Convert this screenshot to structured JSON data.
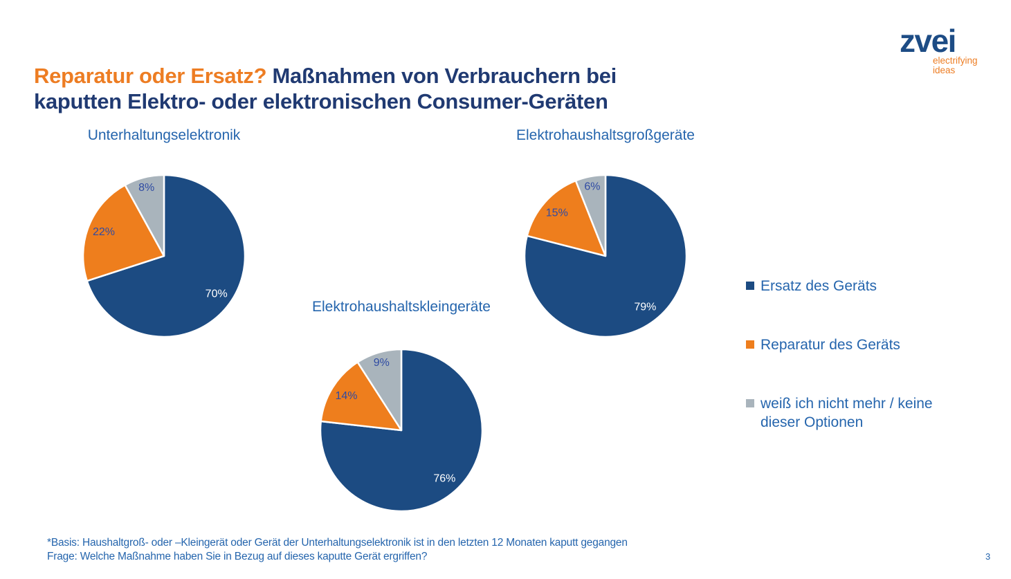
{
  "header": {
    "title_line1_highlight": "Reparatur oder Ersatz?",
    "title_line1_rest": " Maßnahmen von Verbrauchern bei",
    "title_line2": "kaputten Elektro- oder elektronischen Consumer-Geräten",
    "highlight_color": "#ED7D23",
    "title_color": "#203A72"
  },
  "logo": {
    "brand": "zvei",
    "brand_color": "#1D4C85",
    "tagline_line1": "electrifying",
    "tagline_line2": "ideas",
    "tagline_color": "#ED7D23"
  },
  "chart_data": [
    {
      "type": "pie",
      "title": "Unterhaltungselektronik",
      "categories": [
        "Ersatz des Geräts",
        "Reparatur des Geräts",
        "weiß ich nicht mehr / keine dieser Optionen"
      ],
      "values": [
        70,
        22,
        8
      ],
      "unit": "%",
      "start_angle": "top",
      "direction": "clockwise"
    },
    {
      "type": "pie",
      "title": "Elektrohaushaltsgroßgeräte",
      "categories": [
        "Ersatz des Geräts",
        "Reparatur des Geräts",
        "weiß ich nicht mehr / keine dieser Optionen"
      ],
      "values": [
        79,
        15,
        6
      ],
      "unit": "%",
      "start_angle": "top",
      "direction": "clockwise"
    },
    {
      "type": "pie",
      "title": "Elektrohaushaltskleingeräte",
      "categories": [
        "Ersatz des Geräts",
        "Reparatur des Geräts",
        "weiß ich nicht mehr / keine dieser Optionen"
      ],
      "values": [
        76,
        14,
        9
      ],
      "unit": "%",
      "start_angle": "top",
      "direction": "clockwise"
    }
  ],
  "pie_style": {
    "slice_colors": [
      "#1C4B82",
      "#EE7E1D",
      "#A9B4BC"
    ],
    "slice_label_colors": [
      "#FFFFFF",
      "#2F4BA3",
      "#2F4BA3"
    ],
    "slice_border_color": "#FFFFFF"
  },
  "legend": {
    "position": "right",
    "items": [
      {
        "label": "Ersatz des Geräts",
        "color": "#1C4B82"
      },
      {
        "label": "Reparatur des Geräts",
        "color": "#EE7E1D"
      },
      {
        "label": "weiß ich nicht mehr / keine dieser Optionen",
        "color": "#A9B4BC"
      }
    ]
  },
  "footer": {
    "basis_line": "*Basis: Haushaltgroß- oder –Kleingerät oder Gerät der Unterhaltungselektronik ist in den letzten 12 Monaten kaputt gegangen",
    "question_line": "Frage: Welche Maßnahme haben Sie in Bezug auf dieses kaputte Gerät ergriffen?"
  },
  "page_number": "3"
}
